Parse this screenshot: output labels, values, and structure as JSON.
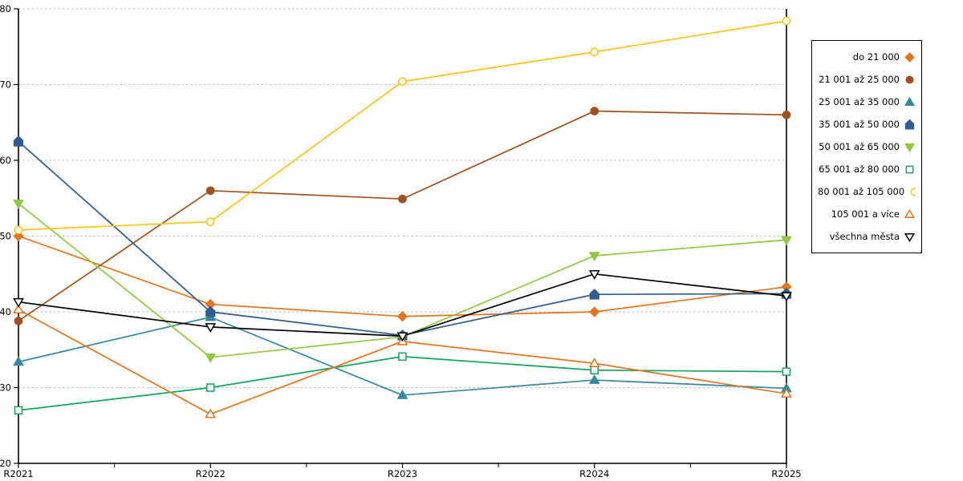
{
  "chart_data": {
    "type": "line",
    "title": "",
    "xlabel": "",
    "ylabel": "",
    "x_axis": {
      "categories": [
        "R2021",
        "R2022",
        "R2023",
        "R2024",
        "R2025"
      ],
      "minor_ticks_between": true
    },
    "y_axis": {
      "ticks": [
        "20",
        "30",
        "40",
        "50",
        "60",
        "70",
        "80"
      ],
      "min": 20,
      "max": 80,
      "grid": "dashed"
    },
    "legend_position": "right",
    "grid_color": "#bbbbbb",
    "axis_color": "#000000",
    "series": [
      {
        "name": "do 21 000",
        "color": "#e2751d",
        "marker": "diamond",
        "filled": true,
        "values": [
          50.0,
          41.0,
          39.4,
          40.0,
          43.3
        ]
      },
      {
        "name": "21 001 až 25 000",
        "color": "#a0501e",
        "marker": "circle",
        "filled": true,
        "values": [
          38.8,
          56.0,
          54.9,
          66.5,
          66.0
        ]
      },
      {
        "name": "25 001 až 35 000",
        "color": "#35889e",
        "marker": "triangle-up",
        "filled": true,
        "values": [
          33.4,
          39.3,
          29.0,
          31.0,
          29.9
        ]
      },
      {
        "name": "35 001 až 50 000",
        "color": "#2e5c8f",
        "marker": "pentagon",
        "filled": true,
        "values": [
          62.5,
          40.0,
          36.9,
          42.3,
          42.4
        ]
      },
      {
        "name": "50 001 až 65 000",
        "color": "#8fc93f",
        "marker": "triangle-down",
        "filled": true,
        "values": [
          54.3,
          34.0,
          36.7,
          47.4,
          49.5
        ]
      },
      {
        "name": "65 001 až 80 000",
        "color": "#13a35d",
        "marker": "square",
        "filled": false,
        "values": [
          27.0,
          30.0,
          34.1,
          32.3,
          32.1
        ]
      },
      {
        "name": "80 001 až 105 000",
        "color": "#fec414",
        "marker": "circle",
        "filled": false,
        "values": [
          50.8,
          51.9,
          70.4,
          74.3,
          78.4
        ]
      },
      {
        "name": "105 001 a více",
        "color": "#e2751d",
        "marker": "triangle-up",
        "filled": false,
        "values": [
          40.3,
          26.5,
          36.1,
          33.2,
          29.2
        ]
      },
      {
        "name": "všechna města",
        "color": "#000000",
        "marker": "triangle-down",
        "filled": false,
        "values": [
          41.3,
          38.0,
          36.8,
          45.0,
          42.1
        ]
      }
    ]
  }
}
